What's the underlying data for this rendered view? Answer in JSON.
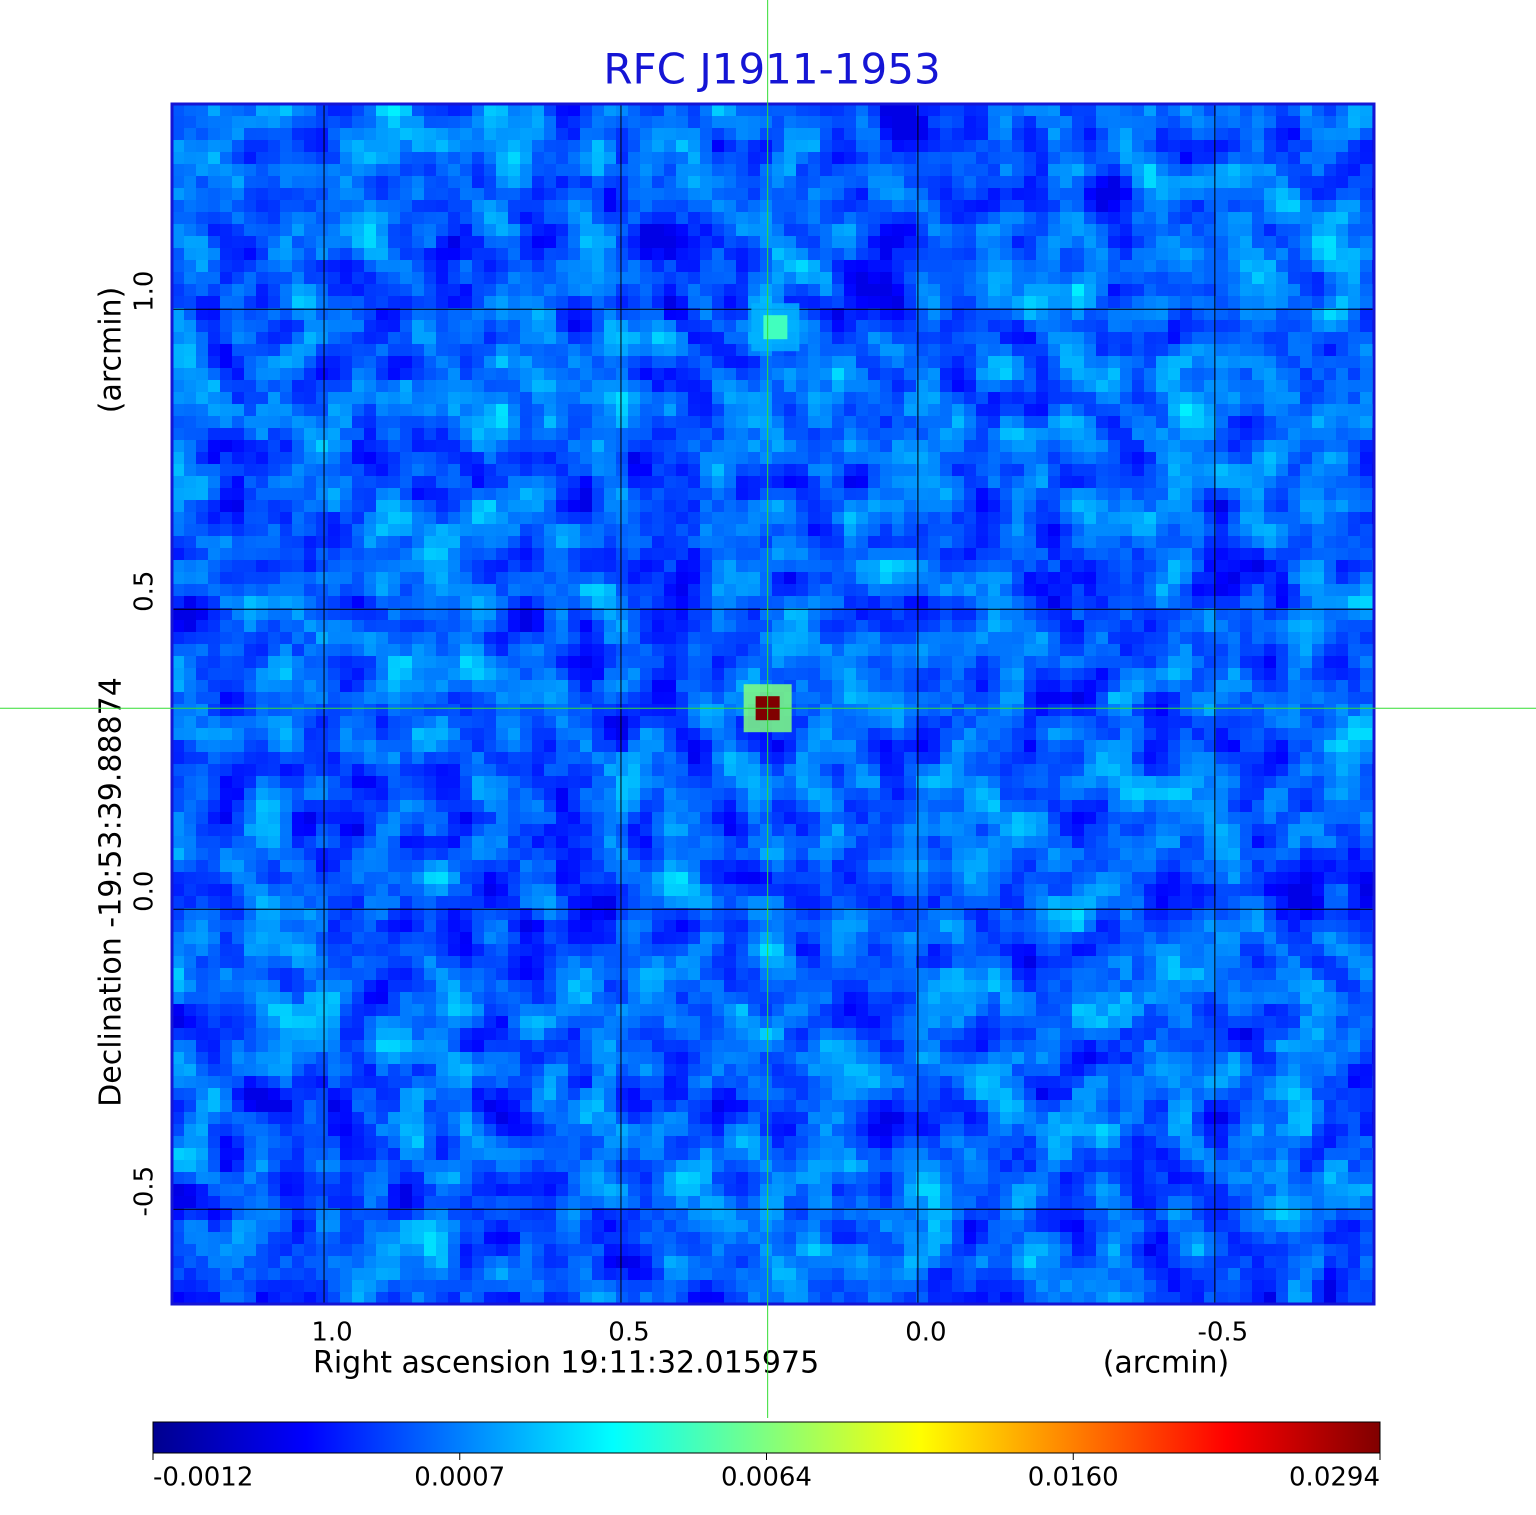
{
  "chart_data": {
    "type": "image",
    "title": "RFC J1911-1953",
    "x_label": "Right ascension  19:11:32.015975",
    "x_unit": "(arcmin)",
    "y_label": "Declination  -19:53:39.88874",
    "y_unit": "(arcmin)",
    "xlim": [
      1.256,
      -0.768
    ],
    "ylim": [
      -0.658,
      1.342
    ],
    "xticks": [
      {
        "value": 1,
        "label": "1.0"
      },
      0.5,
      {
        "value": 0,
        "label": "0.0"
      },
      -0.5
    ],
    "yticks": [
      -0.5,
      {
        "value": 0,
        "label": "0.0"
      },
      0.5,
      {
        "value": 1,
        "label": "1.0"
      }
    ],
    "grid": true,
    "colormap": "jet",
    "colorbar_ticks": [
      -0.0012,
      0.0007,
      0.0064,
      {
        "value": 0.016,
        "label": "0.0160"
      },
      0.0294
    ],
    "sources": [
      {
        "x": 0.253,
        "y": 0.335,
        "value": 0.0294
      },
      {
        "x": 0.24,
        "y": 0.97,
        "value": 0.005
      }
    ]
  }
}
